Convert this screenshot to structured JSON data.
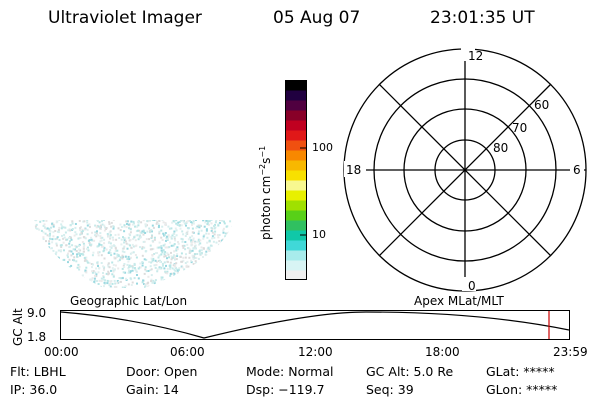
{
  "header": {
    "title": "Ultraviolet Imager",
    "date": "05 Aug 07",
    "time": "23:01:35 UT"
  },
  "colorbar": {
    "unit_label_prefix": "photon cm",
    "unit_exp1": "−2",
    "unit_mid": "s",
    "unit_exp2": "−1",
    "ticks": [
      "100",
      "10"
    ],
    "colors": [
      "#f0f0f0",
      "#d8f4f4",
      "#a8ecec",
      "#40d8d8",
      "#10c8a8",
      "#30c060",
      "#58d018",
      "#a0e000",
      "#e8f000",
      "#f8f890",
      "#f8e000",
      "#f8b800",
      "#f88800",
      "#f05010",
      "#e01818",
      "#c00020",
      "#880028",
      "#500040",
      "#200040",
      "#000000"
    ]
  },
  "polar_plot": {
    "mlt_labels": {
      "top": "12",
      "left": "18",
      "right": "6",
      "bottom": "0"
    },
    "lat_labels": [
      "80",
      "70",
      "60"
    ]
  },
  "timeline": {
    "left_title": "Geographic Lat/Lon",
    "right_title": "Apex MLat/MLT",
    "y_axis_label": "GC Alt",
    "y_ticks": [
      "9.0",
      "1.8"
    ],
    "x_ticks": [
      "00:00",
      "06:00",
      "12:00",
      "18:00",
      "23:59"
    ],
    "marker_color": "#cc0000"
  },
  "info": {
    "flt": "Flt: LBHL",
    "door": "Door: Open",
    "mode": "Mode: Normal",
    "gc_alt": "GC Alt: 5.0 Re",
    "glat": "GLat: *****",
    "ip": "IP: 36.0",
    "gain": "Gain: 14",
    "dsp": "Dsp: −119.7",
    "seq": "Seq: 39",
    "glon": "GLon: *****"
  }
}
